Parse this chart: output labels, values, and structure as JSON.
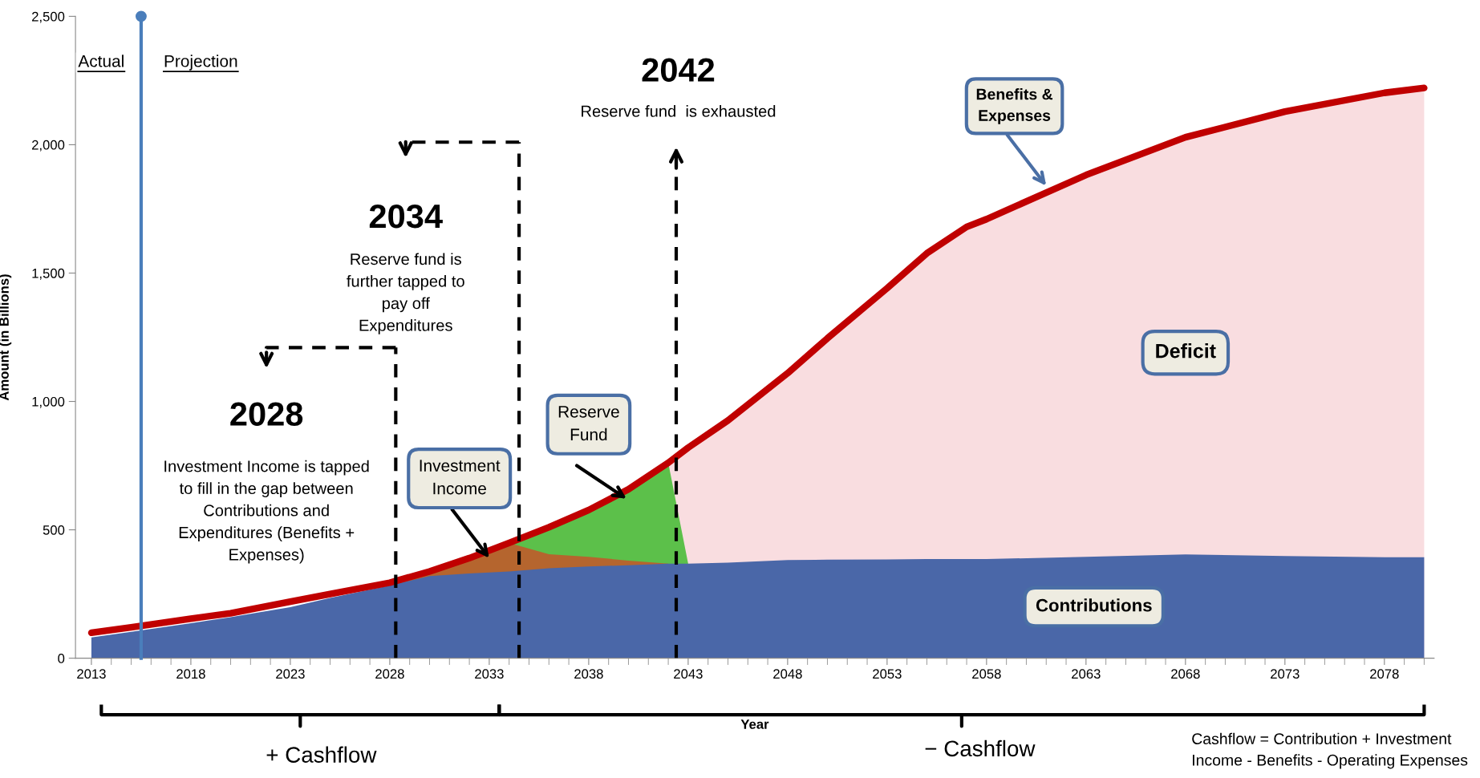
{
  "chart_data": {
    "type": "area",
    "series": [
      {
        "color": "#f9dde0",
        "x": [
          2042,
          2043,
          2045,
          2048,
          2050,
          2053,
          2055,
          2057,
          2058,
          2063,
          2068,
          2073,
          2078,
          2080
        ],
        "values": [
          761,
          820,
          926,
          1110,
          1246,
          1441,
          1577,
          1680,
          1710,
          1882,
          2029,
          2129,
          2202,
          2221
        ]
      },
      {
        "color": "#5cc04a",
        "x": [
          2034,
          2036,
          2038,
          2040,
          2042,
          2043
        ],
        "values": [
          449,
          510,
          577,
          658,
          761,
          368
        ]
      },
      {
        "color": "#b5652e",
        "x": [
          2028,
          2030,
          2032,
          2034,
          2036,
          2038,
          2040,
          2042
        ],
        "values": [
          283,
          338,
          390,
          449,
          405,
          395,
          380,
          368
        ]
      },
      {
        "color": "#4a67a8",
        "x": [
          2013,
          2015,
          2018,
          2020,
          2023,
          2025,
          2028,
          2030,
          2032,
          2034,
          2036,
          2038,
          2040,
          2042,
          2043,
          2045,
          2048,
          2050,
          2053,
          2055,
          2057,
          2058,
          2063,
          2068,
          2073,
          2078,
          2080
        ],
        "values": [
          81,
          103,
          136,
          160,
          199,
          235,
          283,
          320,
          330,
          338,
          350,
          357,
          362,
          368,
          368,
          372,
          382,
          384,
          385,
          386,
          386,
          386,
          395,
          404,
          398,
          393,
          393
        ]
      },
      {
        "type": "line",
        "color": "#c00000",
        "x": [
          2013,
          2015,
          2018,
          2020,
          2023,
          2025,
          2028,
          2030,
          2032,
          2034,
          2036,
          2038,
          2040,
          2042,
          2043,
          2045,
          2048,
          2050,
          2053,
          2055,
          2057,
          2058,
          2063,
          2068,
          2073,
          2078,
          2080
        ],
        "values": [
          99,
          120,
          154,
          175,
          220,
          250,
          294,
          338,
          390,
          449,
          510,
          577,
          658,
          761,
          820,
          926,
          1110,
          1246,
          1441,
          1577,
          1680,
          1710,
          1882,
          2029,
          2129,
          2202,
          2221
        ]
      }
    ],
    "xlabel": "Year",
    "ylabel": "Amount (in Billions)",
    "xlim": [
      2012.2,
      2080.5
    ],
    "xticks": [
      2013,
      2018,
      2023,
      2028,
      2033,
      2038,
      2043,
      2048,
      2053,
      2058,
      2063,
      2068,
      2073,
      2078
    ],
    "ylim": [
      0,
      2500
    ],
    "yticks": [
      0,
      500,
      {
        "value": 1000,
        "label": "1,000"
      },
      {
        "value": 1500,
        "label": "1,500"
      },
      {
        "value": 2000,
        "label": "2,000"
      },
      {
        "value": 2500,
        "label": "2,500"
      }
    ],
    "grid": false,
    "legend": false,
    "ref_lines": [
      {
        "axis": "x",
        "value": 2015.5,
        "color": "#4a7ebb",
        "line_style": "solid"
      },
      {
        "axis": "x",
        "value": 2028.3,
        "color": "#000000",
        "line_style": "dashed"
      },
      {
        "axis": "x",
        "value": 2034.5,
        "color": "#000000",
        "line_style": "dashed"
      },
      {
        "axis": "x",
        "value": 2042.4,
        "color": "#000000",
        "line_style": "dashed"
      }
    ],
    "annotations": [
      "Actual",
      "Projection",
      "2028",
      "Investment Income is tapped\nto fill in the gap between\nContributions and\nExpenditures (Benefits +\nExpenses)",
      "2034",
      "Reserve fund is\nfurther tapped to\npay off\nExpenditures",
      "2042",
      "Reserve fund  is exhausted",
      {
        "text": "Benefits &\nExpenses",
        "x": 2061,
        "y": 1840
      },
      "Deficit",
      {
        "text": "Investment\nIncome",
        "x": 2033,
        "y": 390
      },
      "Reserve\nFund",
      "Contributions",
      "+ Cashflow",
      "− Cashflow",
      "Cashflow = Contribution + Investment Income - Benefits - Operating Expenses"
    ]
  }
}
